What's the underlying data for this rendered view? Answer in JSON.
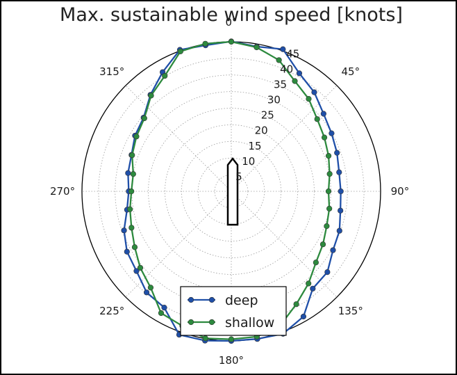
{
  "chart_data": {
    "type": "line",
    "projection": "polar",
    "title": "Max. sustainable wind speed [knots]",
    "theta_zero": "top",
    "theta_direction": "clockwise",
    "angle_ticks": [
      {
        "angle": 0,
        "label": "0°"
      },
      {
        "angle": 45,
        "label": "45°"
      },
      {
        "angle": 90,
        "label": "90°"
      },
      {
        "angle": 135,
        "label": "135°"
      },
      {
        "angle": 180,
        "label": "180°"
      },
      {
        "angle": 225,
        "label": "225°"
      },
      {
        "angle": 270,
        "label": "270°"
      },
      {
        "angle": 315,
        "label": "315°"
      }
    ],
    "radial_ticks": [
      {
        "value": 5,
        "label": "5"
      },
      {
        "value": 10,
        "label": "10"
      },
      {
        "value": 15,
        "label": "15"
      },
      {
        "value": 20,
        "label": "20"
      },
      {
        "value": 25,
        "label": "25"
      },
      {
        "value": 30,
        "label": "30"
      },
      {
        "value": 35,
        "label": "35"
      },
      {
        "value": 40,
        "label": "40"
      },
      {
        "value": 45,
        "label": "45"
      }
    ],
    "rlim": [
      0,
      45
    ],
    "grid": true,
    "legend": "bottom-center",
    "theta": [
      0,
      10,
      20,
      30,
      40,
      50,
      60,
      70,
      80,
      90,
      100,
      110,
      120,
      130,
      140,
      150,
      160,
      170,
      180,
      190,
      200,
      210,
      220,
      230,
      240,
      250,
      260,
      270,
      280,
      290,
      300,
      310,
      320,
      330,
      340,
      350
    ],
    "series": [
      {
        "name": "deep",
        "color": "#1f4fa8",
        "values": [
          45.1,
          44.2,
          45.5,
          41.0,
          38.9,
          36.3,
          34.9,
          33.9,
          33.0,
          33.0,
          33.4,
          34.7,
          35.4,
          37.8,
          38.2,
          43.5,
          45.6,
          45.1,
          45.0,
          45.6,
          45.9,
          40.4,
          39.7,
          37.3,
          36.3,
          34.4,
          31.9,
          30.9,
          31.6,
          32.0,
          33.5,
          34.5,
          37.9,
          41.4,
          45.3,
          44.6
        ]
      },
      {
        "name": "shallow",
        "color": "#2d8a3e",
        "values": [
          45.0,
          44.0,
          42.0,
          38.3,
          36.3,
          33.8,
          32.4,
          31.2,
          30.1,
          29.3,
          30.0,
          30.6,
          31.9,
          33.3,
          36.2,
          39.2,
          43.0,
          44.4,
          44.5,
          44.9,
          43.1,
          42.3,
          37.8,
          35.8,
          33.6,
          32.0,
          31.0,
          30.1,
          30.0,
          31.8,
          33.0,
          34.2,
          37.6,
          40.1,
          44.8,
          45.1
        ]
      }
    ]
  },
  "style": {
    "grid_color": "#9a9a9a",
    "axis_color": "#000000",
    "boat_color": "#000000"
  }
}
